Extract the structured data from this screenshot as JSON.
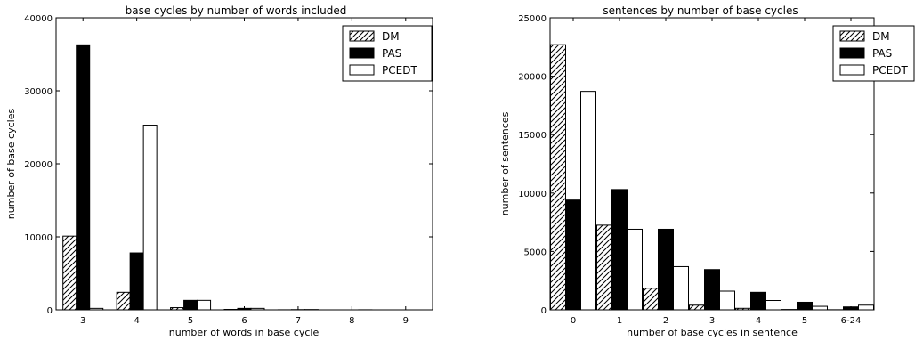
{
  "chart_data": [
    {
      "type": "bar",
      "title": "base cycles by number of words included",
      "xlabel": "number of words in base cycle",
      "ylabel": "number of base cycles",
      "categories": [
        "3",
        "4",
        "5",
        "6",
        "7",
        "8",
        "9"
      ],
      "ylim": [
        0,
        40000
      ],
      "yticks": [
        "0",
        "10000",
        "20000",
        "30000",
        "40000"
      ],
      "legend_position": "top-right",
      "series": [
        {
          "name": "DM",
          "pattern": "hatch",
          "values": [
            10100,
            2400,
            300,
            60,
            10,
            0,
            0
          ]
        },
        {
          "name": "PAS",
          "pattern": "solid-black",
          "values": [
            36300,
            7800,
            1300,
            200,
            30,
            0,
            0
          ]
        },
        {
          "name": "PCEDT",
          "pattern": "white",
          "values": [
            200,
            25300,
            1300,
            200,
            40,
            10,
            0
          ]
        }
      ]
    },
    {
      "type": "bar",
      "title": "sentences by number of base cycles",
      "xlabel": "number of base cycles in sentence",
      "ylabel": "number of sentences",
      "categories": [
        "0",
        "1",
        "2",
        "3",
        "4",
        "5",
        "6-24"
      ],
      "ylim": [
        0,
        25000
      ],
      "yticks": [
        "0",
        "5000",
        "10000",
        "15000",
        "20000",
        "25000"
      ],
      "legend_position": "top-right",
      "series": [
        {
          "name": "DM",
          "pattern": "hatch",
          "values": [
            22700,
            7250,
            1850,
            400,
            130,
            30,
            10
          ]
        },
        {
          "name": "PAS",
          "pattern": "solid-black",
          "values": [
            9400,
            10300,
            6900,
            3450,
            1500,
            650,
            250
          ]
        },
        {
          "name": "PCEDT",
          "pattern": "white",
          "values": [
            18700,
            6900,
            3700,
            1600,
            800,
            300,
            400
          ]
        }
      ]
    }
  ]
}
